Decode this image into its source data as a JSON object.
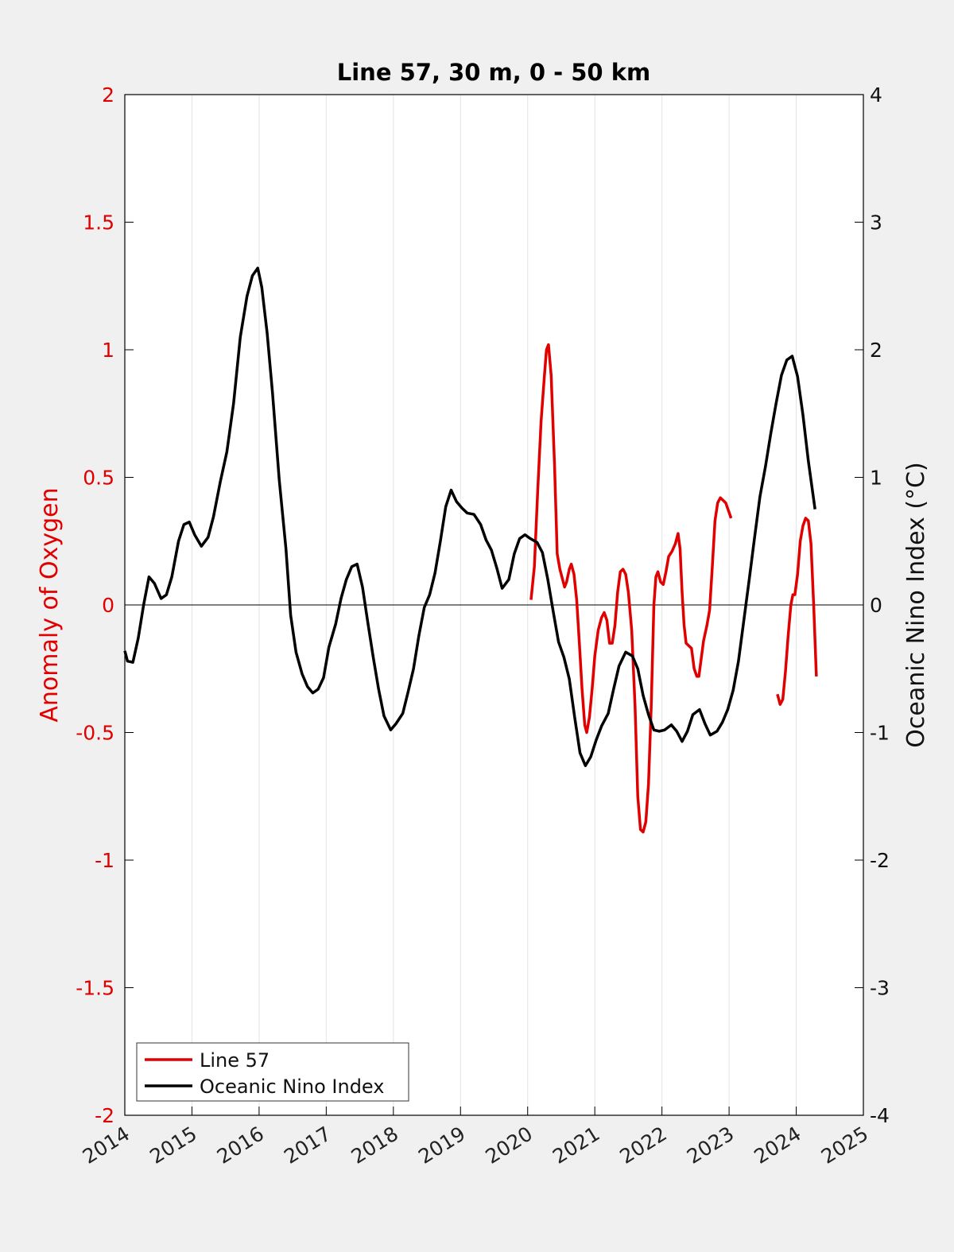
{
  "chart_data": {
    "type": "line",
    "title": "Line 57, 30 m, 0 - 50 km",
    "xlim": [
      2014,
      2025
    ],
    "x_ticks": [
      2014,
      2015,
      2016,
      2017,
      2018,
      2019,
      2020,
      2021,
      2022,
      2023,
      2024,
      2025
    ],
    "y_left": {
      "label": "Anomaly of Oxygen",
      "range": [
        -2,
        2
      ],
      "ticks": [
        -2,
        -1.5,
        -1,
        -0.5,
        0,
        0.5,
        1,
        1.5,
        2
      ],
      "color": "#e00000"
    },
    "y_right": {
      "label": "Oceanic Nino Index (°C)",
      "range": [
        -4,
        4
      ],
      "ticks": [
        -4,
        -3,
        -2,
        -1,
        0,
        1,
        2,
        3,
        4
      ],
      "color": "#111111"
    },
    "zero_line": true,
    "vertical_grid": true,
    "legend_position": "bottom-left",
    "series": [
      {
        "name": "Line 57",
        "axis": "left",
        "color": "#e00000",
        "segments": [
          [
            [
              2020.05,
              0.02
            ],
            [
              2020.1,
              0.15
            ],
            [
              2020.15,
              0.45
            ],
            [
              2020.2,
              0.72
            ],
            [
              2020.25,
              0.9
            ],
            [
              2020.28,
              1.0
            ],
            [
              2020.31,
              1.02
            ],
            [
              2020.35,
              0.9
            ],
            [
              2020.4,
              0.55
            ],
            [
              2020.44,
              0.2
            ],
            [
              2020.48,
              0.14
            ],
            [
              2020.52,
              0.1
            ],
            [
              2020.55,
              0.07
            ],
            [
              2020.58,
              0.09
            ],
            [
              2020.62,
              0.14
            ],
            [
              2020.65,
              0.16
            ],
            [
              2020.69,
              0.12
            ],
            [
              2020.73,
              0.02
            ],
            [
              2020.77,
              -0.15
            ],
            [
              2020.81,
              -0.33
            ],
            [
              2020.85,
              -0.47
            ],
            [
              2020.88,
              -0.5
            ],
            [
              2020.92,
              -0.44
            ],
            [
              2020.96,
              -0.33
            ],
            [
              2021.0,
              -0.2
            ],
            [
              2021.05,
              -0.1
            ],
            [
              2021.1,
              -0.05
            ],
            [
              2021.14,
              -0.03
            ],
            [
              2021.18,
              -0.06
            ],
            [
              2021.22,
              -0.15
            ],
            [
              2021.26,
              -0.15
            ],
            [
              2021.3,
              -0.08
            ],
            [
              2021.34,
              0.05
            ],
            [
              2021.38,
              0.13
            ],
            [
              2021.42,
              0.14
            ],
            [
              2021.46,
              0.12
            ],
            [
              2021.5,
              0.05
            ],
            [
              2021.55,
              -0.1
            ],
            [
              2021.6,
              -0.4
            ],
            [
              2021.64,
              -0.75
            ],
            [
              2021.68,
              -0.88
            ],
            [
              2021.72,
              -0.89
            ],
            [
              2021.76,
              -0.85
            ],
            [
              2021.8,
              -0.7
            ],
            [
              2021.84,
              -0.4
            ],
            [
              2021.88,
              0.0
            ],
            [
              2021.91,
              0.11
            ],
            [
              2021.94,
              0.13
            ],
            [
              2021.98,
              0.09
            ],
            [
              2022.02,
              0.08
            ],
            [
              2022.06,
              0.13
            ],
            [
              2022.1,
              0.19
            ],
            [
              2022.15,
              0.21
            ],
            [
              2022.2,
              0.24
            ],
            [
              2022.24,
              0.28
            ],
            [
              2022.27,
              0.22
            ],
            [
              2022.3,
              0.05
            ],
            [
              2022.33,
              -0.08
            ],
            [
              2022.36,
              -0.15
            ],
            [
              2022.4,
              -0.16
            ],
            [
              2022.44,
              -0.17
            ],
            [
              2022.48,
              -0.25
            ],
            [
              2022.52,
              -0.28
            ],
            [
              2022.55,
              -0.28
            ],
            [
              2022.58,
              -0.22
            ],
            [
              2022.62,
              -0.14
            ],
            [
              2022.67,
              -0.08
            ],
            [
              2022.71,
              -0.02
            ],
            [
              2022.75,
              0.15
            ],
            [
              2022.79,
              0.33
            ],
            [
              2022.83,
              0.4
            ],
            [
              2022.87,
              0.42
            ],
            [
              2022.91,
              0.41
            ],
            [
              2022.95,
              0.4
            ],
            [
              2022.99,
              0.37
            ],
            [
              2023.03,
              0.34
            ]
          ],
          [
            [
              2023.72,
              -0.35
            ],
            [
              2023.76,
              -0.39
            ],
            [
              2023.8,
              -0.37
            ],
            [
              2023.84,
              -0.26
            ],
            [
              2023.88,
              -0.12
            ],
            [
              2023.92,
              0.0
            ],
            [
              2023.95,
              0.04
            ],
            [
              2023.98,
              0.04
            ],
            [
              2024.02,
              0.12
            ],
            [
              2024.06,
              0.25
            ],
            [
              2024.1,
              0.31
            ],
            [
              2024.14,
              0.34
            ],
            [
              2024.18,
              0.33
            ],
            [
              2024.22,
              0.24
            ],
            [
              2024.26,
              0.0
            ],
            [
              2024.3,
              -0.28
            ]
          ]
        ]
      },
      {
        "name": "Oceanic Nino Index",
        "axis": "right",
        "color": "#000000",
        "segments": [
          [
            [
              2014.0,
              -0.36
            ],
            [
              2014.04,
              -0.44
            ],
            [
              2014.12,
              -0.45
            ],
            [
              2014.2,
              -0.26
            ],
            [
              2014.28,
              0.0
            ],
            [
              2014.36,
              0.22
            ],
            [
              2014.44,
              0.17
            ],
            [
              2014.54,
              0.05
            ],
            [
              2014.62,
              0.08
            ],
            [
              2014.7,
              0.22
            ],
            [
              2014.8,
              0.5
            ],
            [
              2014.88,
              0.63
            ],
            [
              2014.96,
              0.65
            ],
            [
              2015.04,
              0.55
            ],
            [
              2015.14,
              0.46
            ],
            [
              2015.24,
              0.53
            ],
            [
              2015.32,
              0.69
            ],
            [
              2015.42,
              0.96
            ],
            [
              2015.52,
              1.2
            ],
            [
              2015.62,
              1.58
            ],
            [
              2015.72,
              2.1
            ],
            [
              2015.82,
              2.42
            ],
            [
              2015.9,
              2.58
            ],
            [
              2015.98,
              2.64
            ],
            [
              2016.04,
              2.49
            ],
            [
              2016.12,
              2.13
            ],
            [
              2016.2,
              1.66
            ],
            [
              2016.3,
              0.98
            ],
            [
              2016.4,
              0.44
            ],
            [
              2016.47,
              -0.08
            ],
            [
              2016.55,
              -0.37
            ],
            [
              2016.64,
              -0.54
            ],
            [
              2016.72,
              -0.64
            ],
            [
              2016.8,
              -0.69
            ],
            [
              2016.88,
              -0.66
            ],
            [
              2016.96,
              -0.57
            ],
            [
              2017.04,
              -0.33
            ],
            [
              2017.14,
              -0.15
            ],
            [
              2017.22,
              0.05
            ],
            [
              2017.3,
              0.2
            ],
            [
              2017.38,
              0.3
            ],
            [
              2017.46,
              0.32
            ],
            [
              2017.54,
              0.14
            ],
            [
              2017.62,
              -0.14
            ],
            [
              2017.7,
              -0.41
            ],
            [
              2017.78,
              -0.66
            ],
            [
              2017.86,
              -0.87
            ],
            [
              2017.96,
              -0.98
            ],
            [
              2018.04,
              -0.93
            ],
            [
              2018.14,
              -0.85
            ],
            [
              2018.22,
              -0.68
            ],
            [
              2018.3,
              -0.5
            ],
            [
              2018.38,
              -0.24
            ],
            [
              2018.46,
              -0.02
            ],
            [
              2018.54,
              0.08
            ],
            [
              2018.62,
              0.25
            ],
            [
              2018.7,
              0.5
            ],
            [
              2018.78,
              0.77
            ],
            [
              2018.86,
              0.9
            ],
            [
              2018.94,
              0.81
            ],
            [
              2019.02,
              0.76
            ],
            [
              2019.1,
              0.72
            ],
            [
              2019.2,
              0.71
            ],
            [
              2019.3,
              0.63
            ],
            [
              2019.38,
              0.51
            ],
            [
              2019.46,
              0.43
            ],
            [
              2019.54,
              0.29
            ],
            [
              2019.62,
              0.13
            ],
            [
              2019.72,
              0.2
            ],
            [
              2019.8,
              0.4
            ],
            [
              2019.88,
              0.52
            ],
            [
              2019.96,
              0.55
            ],
            [
              2020.04,
              0.52
            ],
            [
              2020.14,
              0.49
            ],
            [
              2020.22,
              0.41
            ],
            [
              2020.3,
              0.2
            ],
            [
              2020.38,
              -0.05
            ],
            [
              2020.46,
              -0.29
            ],
            [
              2020.54,
              -0.41
            ],
            [
              2020.62,
              -0.58
            ],
            [
              2020.7,
              -0.88
            ],
            [
              2020.78,
              -1.16
            ],
            [
              2020.86,
              -1.26
            ],
            [
              2020.94,
              -1.19
            ],
            [
              2021.02,
              -1.06
            ],
            [
              2021.1,
              -0.95
            ],
            [
              2021.2,
              -0.85
            ],
            [
              2021.28,
              -0.66
            ],
            [
              2021.36,
              -0.48
            ],
            [
              2021.46,
              -0.37
            ],
            [
              2021.56,
              -0.4
            ],
            [
              2021.64,
              -0.5
            ],
            [
              2021.72,
              -0.71
            ],
            [
              2021.8,
              -0.86
            ],
            [
              2021.88,
              -0.98
            ],
            [
              2021.96,
              -0.99
            ],
            [
              2022.04,
              -0.98
            ],
            [
              2022.14,
              -0.94
            ],
            [
              2022.22,
              -0.99
            ],
            [
              2022.3,
              -1.07
            ],
            [
              2022.38,
              -0.99
            ],
            [
              2022.46,
              -0.86
            ],
            [
              2022.56,
              -0.82
            ],
            [
              2022.64,
              -0.93
            ],
            [
              2022.72,
              -1.02
            ],
            [
              2022.82,
              -0.99
            ],
            [
              2022.9,
              -0.92
            ],
            [
              2022.98,
              -0.82
            ],
            [
              2023.06,
              -0.67
            ],
            [
              2023.14,
              -0.44
            ],
            [
              2023.22,
              -0.12
            ],
            [
              2023.3,
              0.2
            ],
            [
              2023.38,
              0.53
            ],
            [
              2023.46,
              0.85
            ],
            [
              2023.54,
              1.08
            ],
            [
              2023.62,
              1.34
            ],
            [
              2023.7,
              1.58
            ],
            [
              2023.78,
              1.8
            ],
            [
              2023.86,
              1.92
            ],
            [
              2023.94,
              1.95
            ],
            [
              2024.02,
              1.79
            ],
            [
              2024.1,
              1.49
            ],
            [
              2024.18,
              1.13
            ],
            [
              2024.28,
              0.75
            ]
          ]
        ]
      }
    ]
  }
}
